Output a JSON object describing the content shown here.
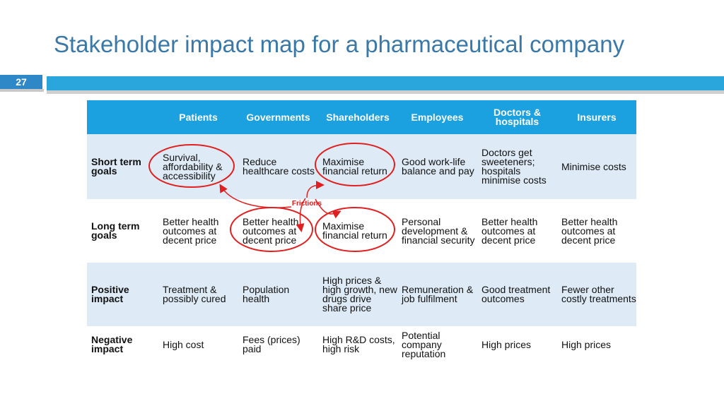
{
  "slide": {
    "title": "Stakeholder impact map for a pharmaceutical company",
    "page_number": "27"
  },
  "table": {
    "columns": [
      "",
      "Patients",
      "Governments",
      "Shareholders",
      "Employees",
      "Doctors & hospitals",
      "Insurers"
    ],
    "rows": [
      {
        "label": "Short term goals",
        "cells": [
          "Survival, affordability & accessibility",
          "Reduce healthcare costs",
          "Maximise financial return",
          "Good work-life balance and pay",
          "Doctors get sweeteners; hospitals minimise costs",
          "Minimise costs"
        ]
      },
      {
        "label": "Long term goals",
        "cells": [
          "Better health outcomes at decent price",
          "Better health outcomes at decent price",
          "Maximise financial return",
          "Personal development & financial security",
          "Better health outcomes at decent price",
          "Better health outcomes at decent price"
        ]
      },
      {
        "label": "Positive impact",
        "cells": [
          "Treatment & possibly cured",
          "Population health",
          "High prices & high growth, new drugs drive share price",
          "Remuneration & job fulfilment",
          "Good treatment outcomes",
          "Fewer other costly treatments"
        ]
      },
      {
        "label": "Negative impact",
        "cells": [
          "High cost",
          "Fees (prices) paid",
          "High R&D costs, high risk",
          "Potential company reputation",
          "High prices",
          "High prices"
        ]
      }
    ]
  },
  "annotation": {
    "label": "Frictions",
    "color": "#e02020"
  },
  "colors": {
    "title": "#3a78a8",
    "header_bg": "#1ba1e0",
    "band_bg": "#deebf6",
    "accent_bar": "#2aa6dd"
  }
}
